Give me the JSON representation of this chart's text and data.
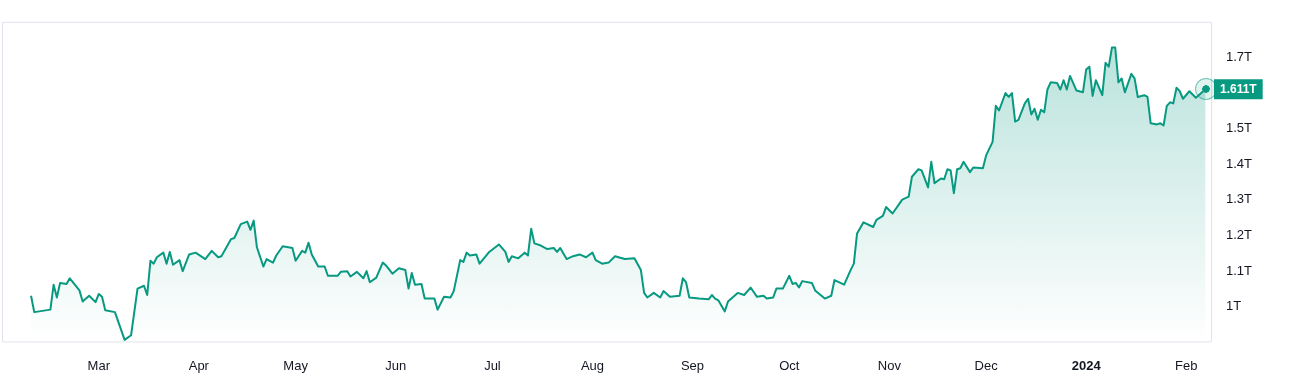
{
  "chart_data": {
    "type": "area",
    "legend": false,
    "grid": false,
    "marker": "none",
    "xlim": [
      "2023-01-30",
      "2024-02-09"
    ],
    "xticks": [
      {
        "value": "2023-03-01",
        "label": "Mar"
      },
      {
        "value": "2023-04-01",
        "label": "Apr"
      },
      {
        "value": "2023-05-01",
        "label": "May"
      },
      {
        "value": "2023-06-01",
        "label": "Jun"
      },
      {
        "value": "2023-07-01",
        "label": "Jul"
      },
      {
        "value": "2023-08-01",
        "label": "Aug"
      },
      {
        "value": "2023-09-01",
        "label": "Sep"
      },
      {
        "value": "2023-10-01",
        "label": "Oct"
      },
      {
        "value": "2023-11-01",
        "label": "Nov"
      },
      {
        "value": "2023-12-01",
        "label": "Dec"
      },
      {
        "value": "2024-01-01",
        "label": "2024"
      },
      {
        "value": "2024-02-01",
        "label": "Feb"
      }
    ],
    "ylim": [
      0.9,
      1.8
    ],
    "yticks": [
      {
        "value": 1,
        "label": "1T"
      },
      {
        "value": 1.1,
        "label": "1.1T"
      },
      {
        "value": 1.2,
        "label": "1.2T"
      },
      {
        "value": 1.3,
        "label": "1.3T"
      },
      {
        "value": 1.4,
        "label": "1.4T"
      },
      {
        "value": 1.5,
        "label": "1.5T"
      },
      {
        "value": 1.7,
        "label": "1.7T"
      }
    ],
    "annotations": [
      {
        "text": "1.611T",
        "x": "2024-02-07",
        "y": 1.611
      }
    ],
    "series": [
      {
        "color": "#089981",
        "x": [
          "2023-02-08",
          "2023-02-09",
          "2023-02-14",
          "2023-02-15",
          "2023-02-16",
          "2023-02-17",
          "2023-02-19",
          "2023-02-20",
          "2023-02-22",
          "2023-02-23",
          "2023-02-24",
          "2023-02-26",
          "2023-02-28",
          "2023-03-01",
          "2023-03-02",
          "2023-03-03",
          "2023-03-06",
          "2023-03-09",
          "2023-03-11",
          "2023-03-13",
          "2023-03-15",
          "2023-03-16",
          "2023-03-17",
          "2023-03-18",
          "2023-03-19",
          "2023-03-21",
          "2023-03-22",
          "2023-03-23",
          "2023-03-24",
          "2023-03-26",
          "2023-03-27",
          "2023-03-29",
          "2023-03-31",
          "2023-04-03",
          "2023-04-05",
          "2023-04-07",
          "2023-04-08",
          "2023-04-11",
          "2023-04-12",
          "2023-04-14",
          "2023-04-16",
          "2023-04-17",
          "2023-04-18",
          "2023-04-19",
          "2023-04-21",
          "2023-04-22",
          "2023-04-24",
          "2023-04-25",
          "2023-04-27",
          "2023-04-30",
          "2023-05-01",
          "2023-05-03",
          "2023-05-04",
          "2023-05-05",
          "2023-05-06",
          "2023-05-08",
          "2023-05-10",
          "2023-05-11",
          "2023-05-14",
          "2023-05-15",
          "2023-05-17",
          "2023-05-18",
          "2023-05-20",
          "2023-05-22",
          "2023-05-23",
          "2023-05-24",
          "2023-05-26",
          "2023-05-28",
          "2023-05-29",
          "2023-05-31",
          "2023-06-02",
          "2023-06-04",
          "2023-06-05",
          "2023-06-06",
          "2023-06-07",
          "2023-06-09",
          "2023-06-10",
          "2023-06-13",
          "2023-06-14",
          "2023-06-16",
          "2023-06-18",
          "2023-06-19",
          "2023-06-21",
          "2023-06-22",
          "2023-06-23",
          "2023-06-24",
          "2023-06-26",
          "2023-06-27",
          "2023-06-30",
          "2023-07-03",
          "2023-07-05",
          "2023-07-06",
          "2023-07-07",
          "2023-07-09",
          "2023-07-11",
          "2023-07-12",
          "2023-07-13",
          "2023-07-14",
          "2023-07-16",
          "2023-07-18",
          "2023-07-20",
          "2023-07-21",
          "2023-07-22",
          "2023-07-24",
          "2023-07-26",
          "2023-07-28",
          "2023-07-30",
          "2023-08-01",
          "2023-08-02",
          "2023-08-04",
          "2023-08-06",
          "2023-08-08",
          "2023-08-11",
          "2023-08-14",
          "2023-08-16",
          "2023-08-17",
          "2023-08-18",
          "2023-08-20",
          "2023-08-22",
          "2023-08-23",
          "2023-08-25",
          "2023-08-28",
          "2023-08-29",
          "2023-08-30",
          "2023-08-31",
          "2023-09-03",
          "2023-09-06",
          "2023-09-07",
          "2023-09-08",
          "2023-09-09",
          "2023-09-11",
          "2023-09-12",
          "2023-09-15",
          "2023-09-17",
          "2023-09-19",
          "2023-09-21",
          "2023-09-23",
          "2023-09-24",
          "2023-09-26",
          "2023-09-27",
          "2023-09-29",
          "2023-10-01",
          "2023-10-02",
          "2023-10-03",
          "2023-10-04",
          "2023-10-05",
          "2023-10-08",
          "2023-10-09",
          "2023-10-12",
          "2023-10-14",
          "2023-10-15",
          "2023-10-18",
          "2023-10-20",
          "2023-10-21",
          "2023-10-22",
          "2023-10-24",
          "2023-10-27",
          "2023-10-28",
          "2023-10-30",
          "2023-10-31",
          "2023-11-02",
          "2023-11-05",
          "2023-11-07",
          "2023-11-08",
          "2023-11-10",
          "2023-11-11",
          "2023-11-13",
          "2023-11-14",
          "2023-11-15",
          "2023-11-17",
          "2023-11-18",
          "2023-11-19",
          "2023-11-20",
          "2023-11-21",
          "2023-11-22",
          "2023-11-23",
          "2023-11-24",
          "2023-11-26",
          "2023-11-27",
          "2023-11-30",
          "2023-12-01",
          "2023-12-03",
          "2023-12-04",
          "2023-12-05",
          "2023-12-07",
          "2023-12-08",
          "2023-12-09",
          "2023-12-10",
          "2023-12-11",
          "2023-12-13",
          "2023-12-14",
          "2023-12-15",
          "2023-12-16",
          "2023-12-17",
          "2023-12-18",
          "2023-12-19",
          "2023-12-20",
          "2023-12-21",
          "2023-12-23",
          "2023-12-24",
          "2023-12-25",
          "2023-12-26",
          "2023-12-27",
          "2023-12-29",
          "2023-12-31",
          "2024-01-01",
          "2024-01-02",
          "2024-01-03",
          "2024-01-04",
          "2024-01-06",
          "2024-01-07",
          "2024-01-08",
          "2024-01-09",
          "2024-01-10",
          "2024-01-11",
          "2024-01-12",
          "2024-01-13",
          "2024-01-15",
          "2024-01-16",
          "2024-01-17",
          "2024-01-19",
          "2024-01-20",
          "2024-01-21",
          "2024-01-23",
          "2024-01-24",
          "2024-01-25",
          "2024-01-26",
          "2024-01-27",
          "2024-01-28",
          "2024-01-29",
          "2024-01-30",
          "2024-01-31",
          "2024-02-02",
          "2024-02-04",
          "2024-02-07"
        ],
        "values": [
          1.031,
          0.985,
          0.992,
          1.062,
          1.026,
          1.067,
          1.064,
          1.08,
          1.057,
          1.046,
          1.015,
          1.031,
          1.013,
          1.036,
          1.028,
          0.99,
          0.985,
          0.907,
          0.92,
          1.051,
          1.059,
          1.033,
          1.129,
          1.121,
          1.139,
          1.152,
          1.121,
          1.154,
          1.118,
          1.131,
          1.1,
          1.147,
          1.152,
          1.134,
          1.157,
          1.139,
          1.142,
          1.19,
          1.193,
          1.232,
          1.239,
          1.216,
          1.242,
          1.167,
          1.113,
          1.134,
          1.124,
          1.144,
          1.17,
          1.165,
          1.129,
          1.157,
          1.152,
          1.18,
          1.147,
          1.113,
          1.113,
          1.087,
          1.087,
          1.098,
          1.1,
          1.085,
          1.098,
          1.08,
          1.1,
          1.069,
          1.082,
          1.124,
          1.116,
          1.093,
          1.108,
          1.103,
          1.051,
          1.095,
          1.062,
          1.064,
          1.023,
          1.023,
          0.992,
          1.028,
          1.026,
          1.044,
          1.131,
          1.126,
          1.152,
          1.144,
          1.147,
          1.121,
          1.154,
          1.175,
          1.154,
          1.126,
          1.142,
          1.136,
          1.152,
          1.144,
          1.219,
          1.178,
          1.172,
          1.162,
          1.165,
          1.154,
          1.165,
          1.134,
          1.142,
          1.147,
          1.139,
          1.152,
          1.131,
          1.121,
          1.124,
          1.142,
          1.134,
          1.136,
          1.103,
          1.039,
          1.026,
          1.039,
          1.026,
          1.044,
          1.028,
          1.031,
          1.08,
          1.069,
          1.026,
          1.023,
          1.021,
          1.033,
          1.023,
          1.018,
          0.987,
          1.015,
          1.039,
          1.033,
          1.054,
          1.028,
          1.031,
          1.023,
          1.026,
          1.051,
          1.051,
          1.087,
          1.064,
          1.067,
          1.054,
          1.072,
          1.067,
          1.046,
          1.023,
          1.031,
          1.075,
          1.062,
          1.103,
          1.121,
          1.206,
          1.237,
          1.224,
          1.244,
          1.255,
          1.28,
          1.262,
          1.301,
          1.309,
          1.365,
          1.386,
          1.383,
          1.335,
          1.407,
          1.347,
          1.36,
          1.358,
          1.386,
          1.383,
          1.319,
          1.386,
          1.389,
          1.407,
          1.378,
          1.391,
          1.389,
          1.425,
          1.463,
          1.564,
          1.551,
          1.6,
          1.589,
          1.6,
          1.52,
          1.525,
          1.571,
          1.584,
          1.54,
          1.556,
          1.525,
          1.553,
          1.546,
          1.61,
          1.63,
          1.628,
          1.61,
          1.636,
          1.61,
          1.648,
          1.607,
          1.602,
          1.666,
          1.674,
          1.592,
          1.636,
          1.594,
          1.685,
          1.674,
          1.728,
          1.728,
          1.63,
          1.641,
          1.602,
          1.654,
          1.641,
          1.589,
          1.594,
          1.589,
          1.515,
          1.512,
          1.515,
          1.509,
          1.564,
          1.574,
          1.571,
          1.615,
          1.605,
          1.584,
          1.605,
          1.587,
          1.611
        ]
      }
    ]
  }
}
